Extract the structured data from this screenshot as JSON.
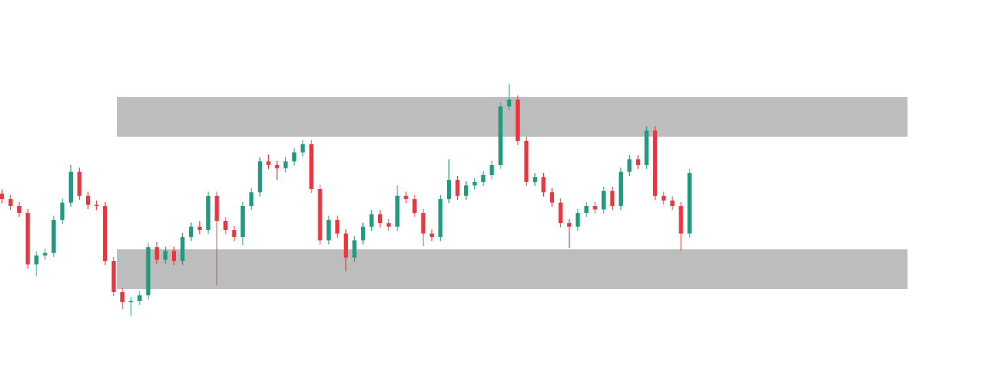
{
  "chart_data": {
    "type": "candlestick",
    "ylim": [
      0,
      562
    ],
    "up_color": "#1f9a7f",
    "down_color": "#e8363f",
    "zone_color": "#bdbdbd",
    "zones": [
      {
        "low": 363,
        "high": 421
      },
      {
        "low": 141,
        "high": 199
      }
    ],
    "open": [
      280,
      272,
      262,
      252,
      177,
      190,
      194,
      242,
      267,
      312,
      277,
      264,
      262,
      182,
      137,
      122,
      124,
      132,
      202,
      184,
      197,
      182,
      217,
      232,
      227,
      277,
      240,
      227,
      217,
      262,
      282,
      327,
      322,
      317,
      327,
      340,
      352,
      287,
      212,
      242,
      222,
      187,
      212,
      232,
      250,
      237,
      232,
      277,
      272,
      252,
      222,
      217,
      272,
      300,
      277,
      292,
      297,
      307,
      322,
      407,
      417,
      357,
      297,
      304,
      282,
      267,
      237,
      232,
      252,
      262,
      257,
      284,
      262,
      312,
      330,
      322,
      372,
      277,
      270,
      262,
      222
    ],
    "high": [
      286,
      278,
      268,
      258,
      196,
      200,
      248,
      273,
      322,
      318,
      283,
      270,
      268,
      188,
      143,
      130,
      138,
      208,
      210,
      203,
      203,
      223,
      238,
      240,
      283,
      283,
      246,
      233,
      268,
      288,
      333,
      337,
      328,
      333,
      346,
      358,
      358,
      293,
      248,
      248,
      228,
      218,
      238,
      256,
      256,
      243,
      292,
      283,
      278,
      258,
      228,
      278,
      330,
      306,
      298,
      303,
      313,
      328,
      413,
      440,
      423,
      363,
      310,
      310,
      288,
      273,
      243,
      258,
      268,
      268,
      290,
      290,
      318,
      336,
      336,
      378,
      378,
      283,
      276,
      268,
      316
    ],
    "low": [
      266,
      256,
      246,
      171,
      160,
      184,
      188,
      236,
      261,
      271,
      258,
      256,
      176,
      131,
      112,
      102,
      118,
      126,
      178,
      178,
      176,
      176,
      211,
      221,
      221,
      147,
      221,
      211,
      205,
      256,
      276,
      316,
      300,
      311,
      321,
      334,
      281,
      206,
      206,
      216,
      167,
      181,
      206,
      226,
      231,
      226,
      226,
      266,
      246,
      204,
      211,
      211,
      266,
      271,
      271,
      286,
      291,
      301,
      316,
      401,
      351,
      291,
      291,
      276,
      261,
      231,
      201,
      226,
      246,
      251,
      251,
      256,
      256,
      306,
      316,
      316,
      271,
      264,
      256,
      197,
      216
    ],
    "close": [
      272,
      262,
      252,
      177,
      190,
      194,
      242,
      267,
      312,
      277,
      264,
      262,
      182,
      137,
      122,
      124,
      132,
      202,
      184,
      197,
      182,
      217,
      232,
      227,
      277,
      240,
      227,
      217,
      262,
      282,
      327,
      322,
      317,
      327,
      340,
      352,
      287,
      212,
      242,
      222,
      187,
      212,
      232,
      250,
      237,
      232,
      277,
      272,
      252,
      222,
      217,
      272,
      300,
      277,
      292,
      297,
      307,
      322,
      407,
      417,
      357,
      297,
      304,
      282,
      267,
      237,
      232,
      252,
      262,
      257,
      284,
      262,
      312,
      330,
      322,
      372,
      277,
      270,
      262,
      222,
      310
    ]
  }
}
